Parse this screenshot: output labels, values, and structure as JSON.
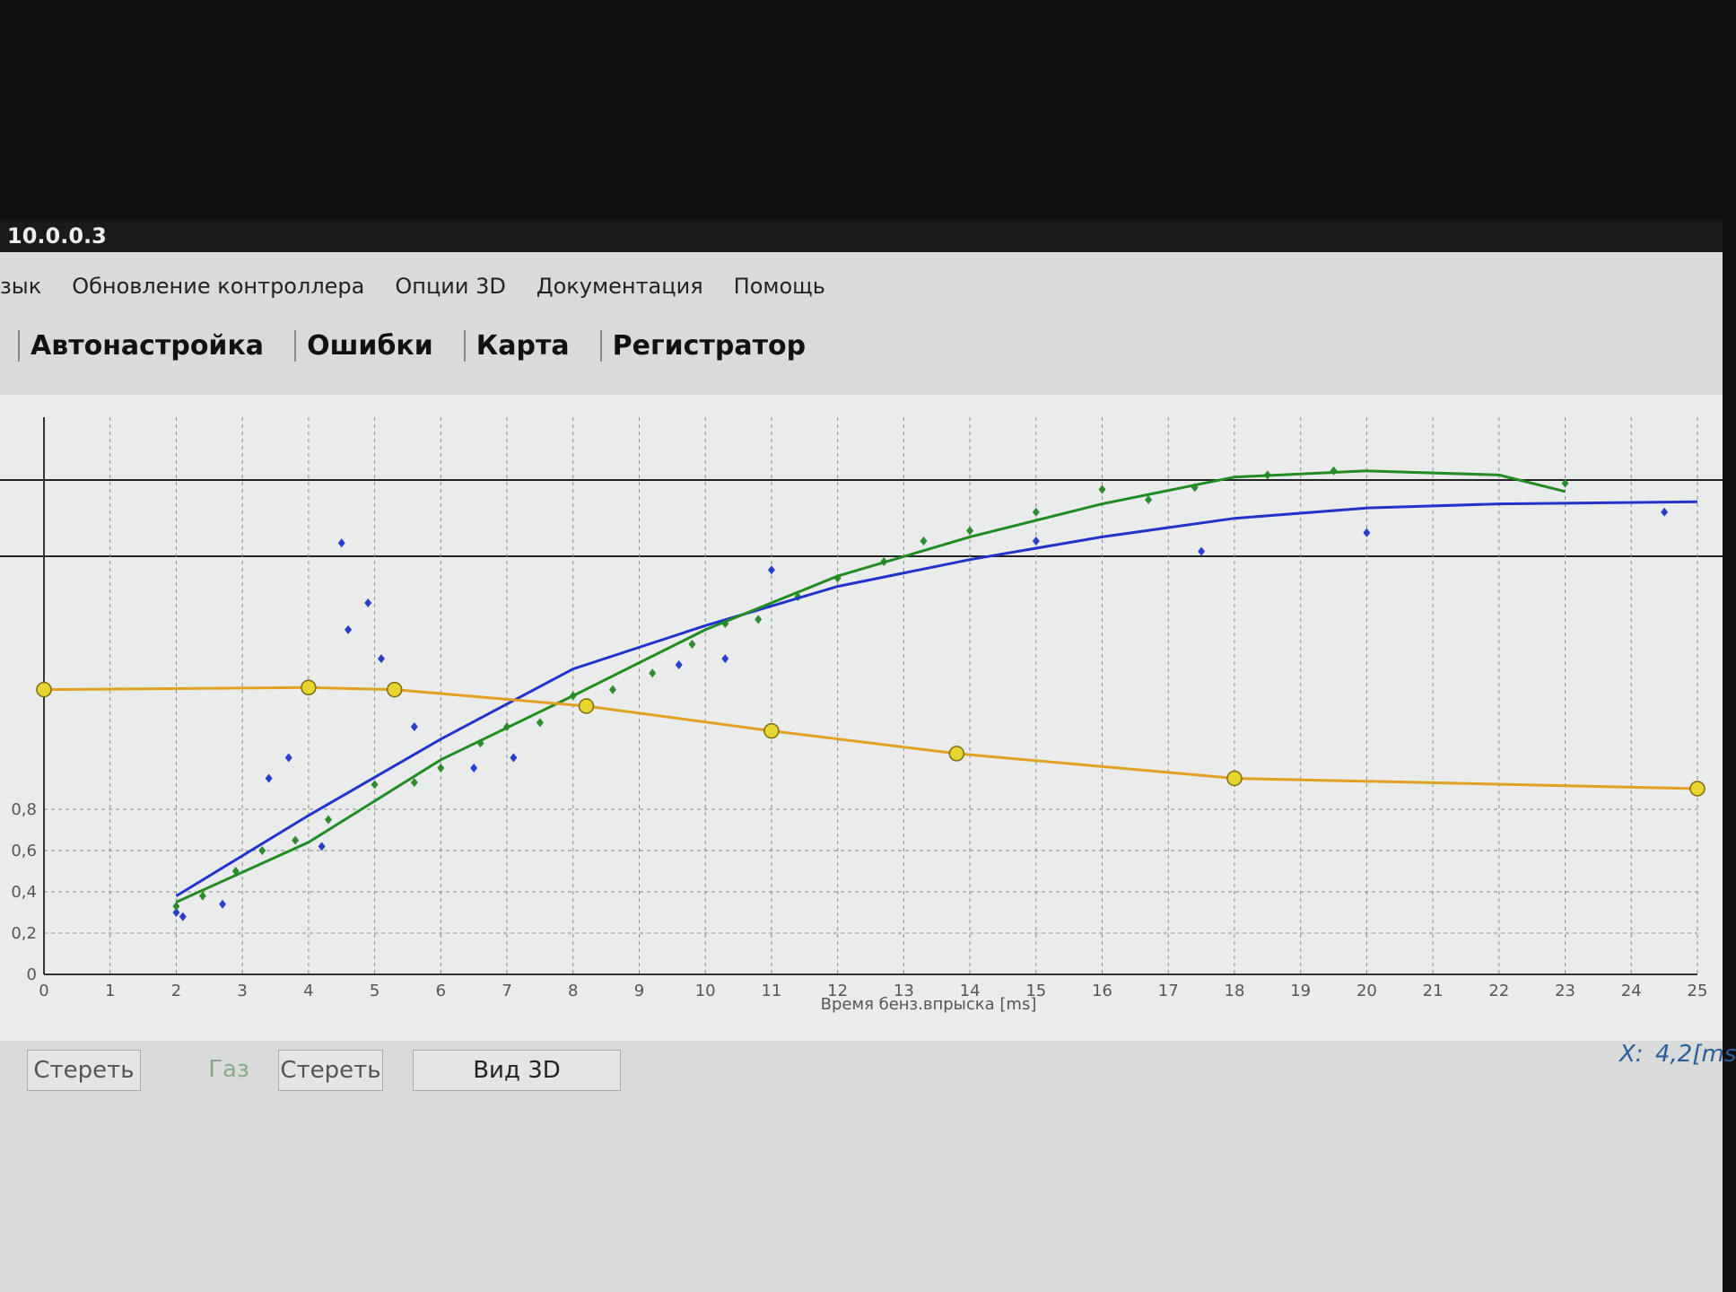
{
  "window": {
    "title": "10.0.0.3",
    "menu": [
      "зык",
      "Обновление контроллера",
      "Опции 3D",
      "Документация",
      "Помощь"
    ],
    "tabs": [
      "Автонастройка",
      "Ошибки",
      "Карта",
      "Регистратор"
    ]
  },
  "chart_data": {
    "type": "line",
    "xlabel": "Время бенз.впрыска [ms]",
    "xlim": [
      0,
      25
    ],
    "xticks": [
      0,
      1,
      2,
      3,
      4,
      5,
      6,
      7,
      8,
      9,
      10,
      11,
      12,
      13,
      14,
      15,
      16,
      17,
      18,
      19,
      20,
      21,
      22,
      23,
      24,
      25
    ],
    "ylim": [
      0,
      2.7
    ],
    "yticks": [
      0,
      {
        "value": 0.2,
        "label": "0,2"
      },
      {
        "value": 0.4,
        "label": "0,4"
      },
      {
        "value": 0.6,
        "label": "0,6"
      },
      {
        "value": 0.8,
        "label": "0,8"
      }
    ],
    "grid": true,
    "series": [
      {
        "color": "#2a3fc9",
        "line": false,
        "marker": "diamond",
        "x": [
          2,
          2.1,
          2.7,
          3.4,
          3.7,
          4.5,
          4.6,
          4.9,
          5.1,
          5.6,
          6.5,
          9.6,
          11,
          15,
          17.5,
          20,
          24.5,
          4.2,
          7.1,
          10.3
        ],
        "values": [
          0.3,
          0.28,
          0.34,
          0.95,
          1.05,
          2.09,
          1.67,
          1.8,
          1.53,
          1.2,
          1.0,
          1.5,
          1.96,
          2.1,
          2.05,
          2.14,
          2.24,
          0.62,
          1.05,
          1.53
        ]
      },
      {
        "color": "#2e8b2e",
        "line": false,
        "marker": "diamond",
        "x": [
          2,
          2.4,
          2.9,
          3.3,
          3.8,
          4.3,
          5,
          5.6,
          6,
          6.6,
          7,
          7.5,
          8,
          8.6,
          9.2,
          9.8,
          10.3,
          10.8,
          11.4,
          12,
          12.7,
          13.3,
          14,
          15,
          16,
          16.7,
          17.4,
          18.5,
          19.5,
          23
        ],
        "values": [
          0.33,
          0.38,
          0.5,
          0.6,
          0.65,
          0.75,
          0.92,
          0.93,
          1.0,
          1.12,
          1.2,
          1.22,
          1.35,
          1.38,
          1.46,
          1.6,
          1.7,
          1.72,
          1.83,
          1.92,
          2.0,
          2.1,
          2.15,
          2.24,
          2.35,
          2.3,
          2.36,
          2.42,
          2.44,
          2.38
        ]
      },
      {
        "color": "#2233cc",
        "line": true,
        "marker": null,
        "x": [
          2,
          4,
          6,
          8,
          10,
          12,
          14,
          16,
          18,
          20,
          22,
          25
        ],
        "values": [
          0.38,
          0.77,
          1.14,
          1.48,
          1.69,
          1.88,
          2.01,
          2.12,
          2.21,
          2.26,
          2.28,
          2.29
        ]
      },
      {
        "color": "#228b22",
        "line": true,
        "marker": null,
        "x": [
          2,
          4,
          6,
          8,
          10,
          12,
          14,
          16,
          18,
          20,
          22,
          23
        ],
        "values": [
          0.35,
          0.64,
          1.04,
          1.35,
          1.67,
          1.93,
          2.12,
          2.28,
          2.41,
          2.44,
          2.42,
          2.34
        ]
      },
      {
        "color": "#e0a020",
        "line": true,
        "marker": "circle",
        "x": [
          0,
          4,
          5.3,
          8.2,
          11,
          13.8,
          18,
          25
        ],
        "values": [
          1.38,
          1.39,
          1.38,
          1.3,
          1.18,
          1.07,
          0.95,
          0.9
        ]
      }
    ]
  },
  "footer": {
    "buttons": [
      "Стереть",
      "Газ",
      "Стереть",
      "Вид 3D"
    ],
    "cursor_label": "X:",
    "cursor_value": "4,2[ms"
  }
}
